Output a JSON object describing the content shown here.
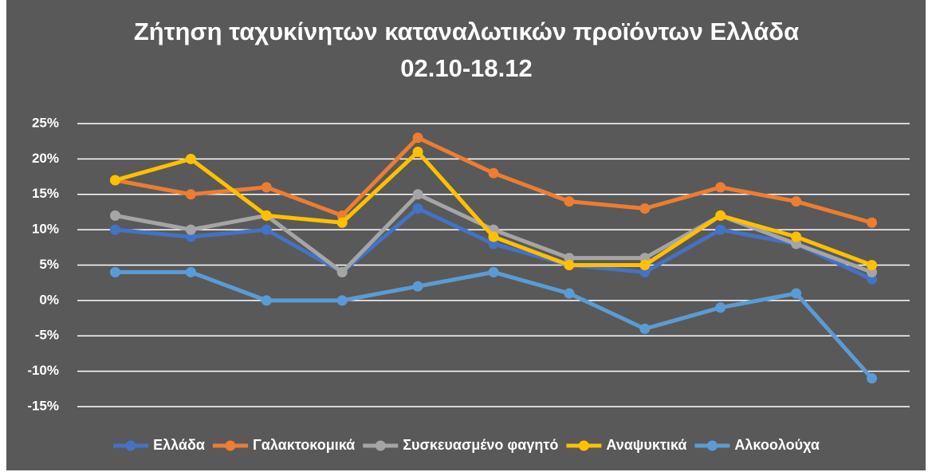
{
  "chart_data": {
    "type": "line",
    "title": "Ζήτηση ταχυκίνητων καταναλωτικών προϊόντων Ελλάδα",
    "subtitle": "02.10-18.12",
    "categories": [
      null,
      null,
      null,
      null,
      null,
      null,
      null,
      null,
      null,
      null,
      null
    ],
    "series": [
      {
        "name": "Ελλάδα",
        "color": "#4472c4",
        "values": [
          10,
          9,
          10,
          4,
          13,
          8,
          5,
          4,
          10,
          8,
          3
        ]
      },
      {
        "name": "Γαλακτοκομικά",
        "color": "#ed7d31",
        "values": [
          17,
          15,
          16,
          12,
          23,
          18,
          14,
          13,
          16,
          14,
          11
        ]
      },
      {
        "name": "Συσκευασμένο φαγητό",
        "color": "#a5a5a5",
        "values": [
          12,
          10,
          12,
          4,
          15,
          10,
          6,
          6,
          12,
          8,
          4
        ]
      },
      {
        "name": "Αναψυκτικά",
        "color": "#ffc000",
        "values": [
          17,
          20,
          12,
          11,
          21,
          9,
          5,
          5,
          12,
          9,
          5
        ]
      },
      {
        "name": "Αλκοολούχα",
        "color": "#5b9bd5",
        "values": [
          4,
          4,
          0,
          0,
          2,
          4,
          1,
          -4,
          -1,
          1,
          -11
        ]
      }
    ],
    "ylim": [
      -15,
      25
    ],
    "yticks": [
      {
        "value": -15,
        "label": "-15%"
      },
      {
        "value": -10,
        "label": "-10%"
      },
      {
        "value": -5,
        "label": "-5%"
      },
      {
        "value": 0,
        "label": "0%"
      },
      {
        "value": 5,
        "label": "5%"
      },
      {
        "value": 10,
        "label": "10%"
      },
      {
        "value": 15,
        "label": "15%"
      },
      {
        "value": 20,
        "label": "20%"
      },
      {
        "value": 25,
        "label": "25%"
      }
    ],
    "grid": true,
    "legend": "bottom"
  }
}
